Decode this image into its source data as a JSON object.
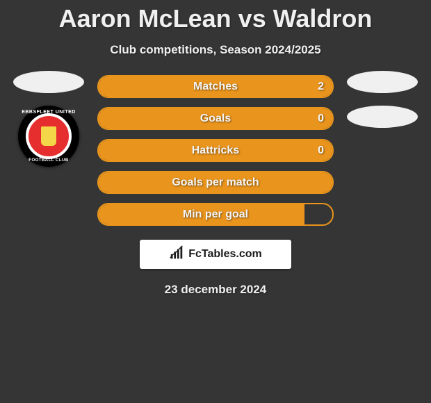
{
  "title": "Aaron McLean vs Waldron",
  "subtitle": "Club competitions, Season 2024/2025",
  "date": "23 december 2024",
  "logo_text": "FcTables.com",
  "colors": {
    "background": "#353535",
    "bar_border": "#e8941d",
    "bar_fill": "#e8941d",
    "oval": "#f0f0f0",
    "logo_box": "#ffffff"
  },
  "left": {
    "badge_ring_top": "EBBSFLEET UNITED",
    "badge_ring_bottom": "FOOTBALL CLUB"
  },
  "bars": [
    {
      "label": "Matches",
      "value": "2",
      "fill_pct": 100
    },
    {
      "label": "Goals",
      "value": "0",
      "fill_pct": 100
    },
    {
      "label": "Hattricks",
      "value": "0",
      "fill_pct": 100
    },
    {
      "label": "Goals per match",
      "value": "",
      "fill_pct": 100
    },
    {
      "label": "Min per goal",
      "value": "",
      "fill_pct": 88
    }
  ]
}
